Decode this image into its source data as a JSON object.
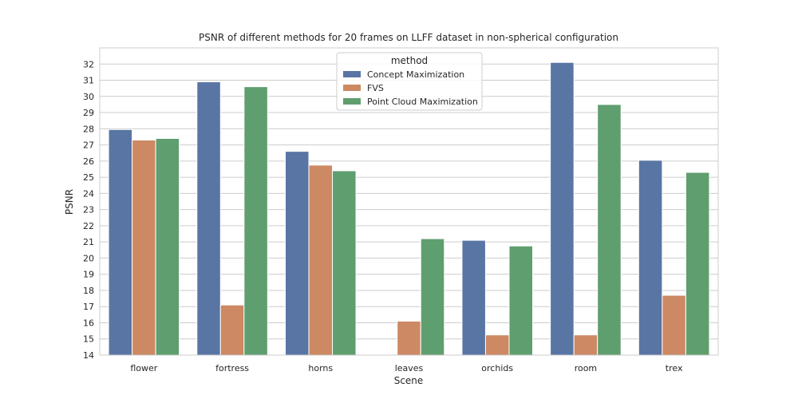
{
  "chart_data": {
    "type": "bar",
    "title": "PSNR of different methods for 20 frames on LLFF dataset in non-spherical configuration",
    "xlabel": "Scene",
    "ylabel": "PSNR",
    "ylim": [
      14,
      33
    ],
    "yticks": [
      14,
      15,
      16,
      17,
      18,
      19,
      20,
      21,
      22,
      23,
      24,
      25,
      26,
      27,
      28,
      29,
      30,
      31,
      32
    ],
    "grid": "y",
    "legend": {
      "title": "method",
      "placement": "top-center"
    },
    "categories": [
      "flower",
      "fortress",
      "horns",
      "leaves",
      "orchids",
      "room",
      "trex"
    ],
    "series": [
      {
        "name": "Concept Maximization",
        "color": "#5875a4",
        "values": [
          27.95,
          30.9,
          26.6,
          null,
          21.1,
          32.1,
          26.05
        ]
      },
      {
        "name": "FVS",
        "color": "#cc8963",
        "values": [
          27.3,
          17.1,
          25.75,
          16.1,
          15.25,
          15.25,
          17.7
        ]
      },
      {
        "name": "Point Cloud Maximization",
        "color": "#5f9e6e",
        "values": [
          27.4,
          30.6,
          25.4,
          21.2,
          20.75,
          29.5,
          25.3
        ]
      }
    ]
  }
}
